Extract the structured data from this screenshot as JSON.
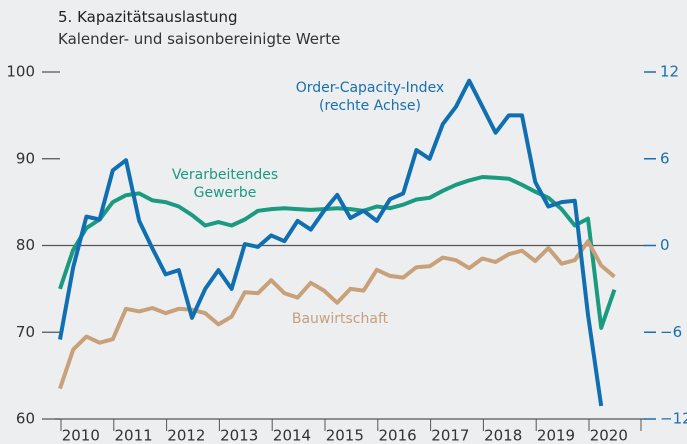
{
  "chart_data": {
    "type": "line",
    "title": "5. Kapazitätsauslastung",
    "subtitle": "Kalender- und saisonbereinigte Werte",
    "annotation": "(rechte Achse)",
    "categories": [
      "2010",
      null,
      null,
      null,
      "2011",
      null,
      null,
      null,
      "2012",
      null,
      null,
      null,
      "2013",
      null,
      null,
      null,
      "2014",
      null,
      null,
      null,
      "2015",
      null,
      null,
      null,
      "2016",
      null,
      null,
      null,
      "2017",
      null,
      null,
      null,
      "2018",
      null,
      null,
      null,
      "2019",
      null,
      null,
      null,
      "2020",
      null,
      null
    ],
    "ylim": [
      60,
      100
    ],
    "yticks": [
      60,
      70,
      80,
      90,
      100
    ],
    "y2lim": [
      -12,
      12
    ],
    "y2ticks": [
      {
        "value": -12,
        "label": "−12"
      },
      {
        "value": -6,
        "label": "−6"
      },
      0,
      6,
      12
    ],
    "series": [
      {
        "name": "Verarbeitendes Gewerbe",
        "color": "#1a9a7e",
        "values": [
          75,
          79.5,
          82,
          83,
          85,
          85.8,
          86,
          85.2,
          85,
          84.5,
          83.5,
          82.3,
          82.7,
          82.3,
          83,
          84,
          84.2,
          84.3,
          84.2,
          84.1,
          84.2,
          84.3,
          84.2,
          84,
          84.5,
          84.3,
          84.7,
          85.3,
          85.5,
          86.3,
          87,
          87.5,
          87.9,
          87.8,
          87.7,
          87,
          86.2,
          85.5,
          84.2,
          82.3,
          83.1,
          70.5,
          74.9
        ]
      },
      {
        "name": "Bauwirtschaft",
        "color": "#c8a07a",
        "values": [
          63.5,
          68,
          69.5,
          68.8,
          69.2,
          72.7,
          72.4,
          72.8,
          72.2,
          72.7,
          72.6,
          72.2,
          70.9,
          71.8,
          74.6,
          74.5,
          76,
          74.5,
          74,
          75.7,
          74.8,
          73.4,
          75,
          74.8,
          77.2,
          76.5,
          76.3,
          77.5,
          77.6,
          78.6,
          78.3,
          77.4,
          78.5,
          78.1,
          79,
          79.4,
          78.2,
          79.7,
          77.9,
          78.3,
          80.5,
          77.7,
          76.4
        ]
      },
      {
        "name": "Order-Capacity-Index",
        "color": "#0f6fb0",
        "axis": "y2",
        "values": [
          -6.5,
          -1.5,
          2.0,
          1.8,
          5.2,
          5.9,
          1.7,
          -0.2,
          -2.0,
          -1.7,
          -5.0,
          -3.0,
          -1.7,
          -3.0,
          0.1,
          -0.1,
          0.7,
          0.3,
          1.7,
          1.1,
          2.4,
          3.5,
          1.9,
          2.4,
          1.7,
          3.2,
          3.6,
          6.6,
          6.0,
          8.4,
          9.6,
          11.4,
          9.6,
          7.8,
          9.0,
          9.0,
          4.4,
          2.7,
          3.0,
          3.1,
          -4.8,
          -11.1,
          null
        ]
      }
    ]
  }
}
